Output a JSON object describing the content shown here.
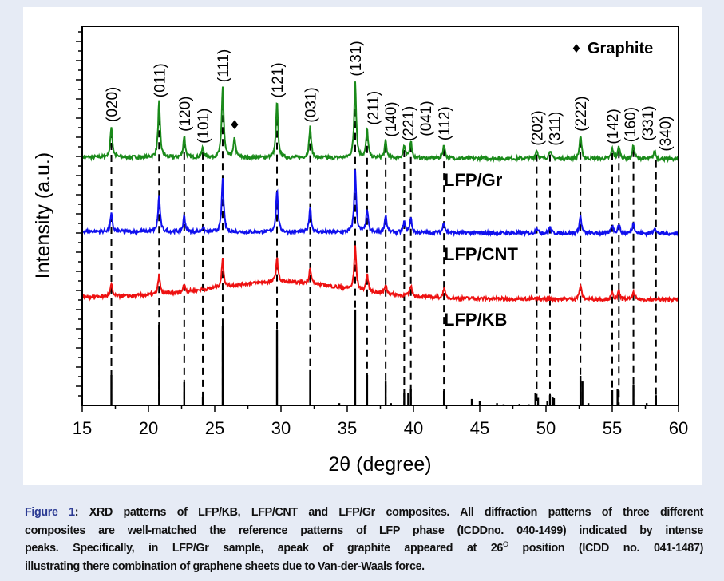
{
  "chart_data": {
    "type": "line",
    "title": "",
    "xlabel": "2θ (degree)",
    "ylabel": "Intensity (a.u.)",
    "xlim": [
      15,
      60
    ],
    "ylim": [
      0,
      100
    ],
    "xticks": [
      15,
      20,
      25,
      30,
      35,
      40,
      45,
      50,
      55,
      60
    ],
    "y_tick_labels": "none",
    "legend": {
      "marker": "♦",
      "label": "Graphite",
      "placement": "top-right"
    },
    "series": [
      {
        "name": "LFP/Gr",
        "color": "#1a8a1a",
        "baseline": [
          65.5,
          65.0
        ],
        "peaks": [
          [
            17.2,
            8.2
          ],
          [
            20.8,
            14.7
          ],
          [
            22.7,
            5.7
          ],
          [
            24.1,
            2.5
          ],
          [
            25.6,
            18.7
          ],
          [
            26.5,
            5.1
          ],
          [
            29.7,
            14.7
          ],
          [
            32.2,
            8.2
          ],
          [
            35.6,
            20.4
          ],
          [
            36.5,
            7.4
          ],
          [
            37.9,
            4.4
          ],
          [
            39.3,
            3.2
          ],
          [
            39.8,
            4.6
          ],
          [
            42.3,
            3.6
          ],
          [
            49.3,
            2.3
          ],
          [
            50.3,
            2.3
          ],
          [
            52.6,
            6.1
          ],
          [
            55.0,
            2.7
          ],
          [
            55.5,
            3.2
          ],
          [
            56.6,
            3.6
          ],
          [
            58.2,
            2.1
          ]
        ]
      },
      {
        "name": "LFP/CNT",
        "color": "#1010ee",
        "baseline": [
          45.9,
          45.3
        ],
        "peaks": [
          [
            17.2,
            4.6
          ],
          [
            20.8,
            9.5
          ],
          [
            22.7,
            4.2
          ],
          [
            24.1,
            1.2
          ],
          [
            25.6,
            13.9
          ],
          [
            29.7,
            11.2
          ],
          [
            32.2,
            6.7
          ],
          [
            35.6,
            16.2
          ],
          [
            36.5,
            5.9
          ],
          [
            37.9,
            4.6
          ],
          [
            39.3,
            2.7
          ],
          [
            39.8,
            3.8
          ],
          [
            42.3,
            2.9
          ],
          [
            49.3,
            1.5
          ],
          [
            50.3,
            1.5
          ],
          [
            52.6,
            4.6
          ],
          [
            55.0,
            2.1
          ],
          [
            55.5,
            2.5
          ],
          [
            56.6,
            2.9
          ],
          [
            58.2,
            1.7
          ]
        ]
      },
      {
        "name": "LFP/KB",
        "color": "#ee1111",
        "baseline": [
          28.6,
          27.9
        ],
        "hump": {
          "center": 30,
          "height": 4.2,
          "width": 5
        },
        "peaks": [
          [
            17.2,
            3.2
          ],
          [
            20.8,
            5.1
          ],
          [
            22.7,
            2.1
          ],
          [
            25.6,
            7.2
          ],
          [
            29.7,
            6.3
          ],
          [
            32.2,
            4.2
          ],
          [
            35.6,
            11.6
          ],
          [
            36.5,
            4.6
          ],
          [
            37.9,
            2.5
          ],
          [
            39.8,
            2.9
          ],
          [
            42.3,
            2.5
          ],
          [
            52.6,
            3.8
          ],
          [
            55.0,
            1.5
          ],
          [
            55.5,
            2.1
          ],
          [
            56.6,
            1.7
          ]
        ]
      }
    ],
    "reference_pattern": {
      "name": "LFP (ICDD no. 040-1499)",
      "color": "#000000",
      "sticks": [
        [
          17.2,
          8
        ],
        [
          20.8,
          21.3
        ],
        [
          22.7,
          6.1
        ],
        [
          24.1,
          2.3
        ],
        [
          25.6,
          21
        ],
        [
          29.7,
          20
        ],
        [
          32.2,
          9.5
        ],
        [
          34.4,
          0.6
        ],
        [
          35.6,
          25.3
        ],
        [
          36.5,
          8
        ],
        [
          37.9,
          6.3
        ],
        [
          38.3,
          0.6
        ],
        [
          39.3,
          3.2
        ],
        [
          39.6,
          3.2
        ],
        [
          39.8,
          4.4
        ],
        [
          42.3,
          3.8
        ],
        [
          44.4,
          1.7
        ],
        [
          45.0,
          1.1
        ],
        [
          46.3,
          0.6
        ],
        [
          46.8,
          0.3
        ],
        [
          48.0,
          0.4
        ],
        [
          48.7,
          0.3
        ],
        [
          49.2,
          3.2
        ],
        [
          49.4,
          2
        ],
        [
          50.1,
          1.1
        ],
        [
          50.3,
          2.7
        ],
        [
          50.5,
          2.1
        ],
        [
          50.6,
          1.9
        ],
        [
          52.6,
          7.8
        ],
        [
          52.75,
          6.3
        ],
        [
          53.2,
          0.6
        ],
        [
          55.0,
          4
        ],
        [
          55.4,
          4.4
        ],
        [
          56.6,
          5.3
        ],
        [
          57.6,
          0.6
        ],
        [
          58.3,
          2.7
        ],
        [
          59.5,
          0.2
        ]
      ]
    },
    "graphite_peak": {
      "x": 26.5,
      "marker": "♦"
    },
    "hkl_labels": [
      {
        "hkl": "(020)",
        "x": 17.2
      },
      {
        "hkl": "(011)",
        "x": 20.8
      },
      {
        "hkl": "(120)",
        "x": 22.7
      },
      {
        "hkl": "(101)",
        "x": 24.1
      },
      {
        "hkl": "(111)",
        "x": 25.6
      },
      {
        "hkl": "(121)",
        "x": 29.7
      },
      {
        "hkl": "(031)",
        "x": 32.2
      },
      {
        "hkl": "(131)",
        "x": 35.6
      },
      {
        "hkl": "(211)",
        "x": 36.5
      },
      {
        "hkl": "(140)",
        "x": 37.9
      },
      {
        "hkl": "(221)",
        "x": 39.3
      },
      {
        "hkl": "(041)",
        "x": 39.8
      },
      {
        "hkl": "(112)",
        "x": 42.3
      },
      {
        "hkl": "(202)",
        "x": 49.3
      },
      {
        "hkl": "(311)",
        "x": 50.3
      },
      {
        "hkl": "(222)",
        "x": 52.6
      },
      {
        "hkl": "(142)",
        "x": 55.0
      },
      {
        "hkl": "(160)",
        "x": 55.5
      },
      {
        "hkl": "(331)",
        "x": 56.6
      },
      {
        "hkl": "(340)",
        "x": 58.3
      }
    ]
  },
  "caption": {
    "label": "Figure 1",
    "line1": ": XRD patterns of LFP/KB, LFP/CNT and LFP/Gr composites.  All diffraction patterns of three different",
    "line2": "composites are well-matched the reference patterns of LFP phase (ICDDno. 040-1499) indicated by intense",
    "line3a": "peaks.  Specifically, in LFP/Gr sample, apeak of graphite appeared at 26",
    "line3sup": "O",
    "line3b": " position (ICDD no.  041-1487)",
    "line4": "illustrating there combination of graphene sheets due to Van-der-Waals force."
  }
}
